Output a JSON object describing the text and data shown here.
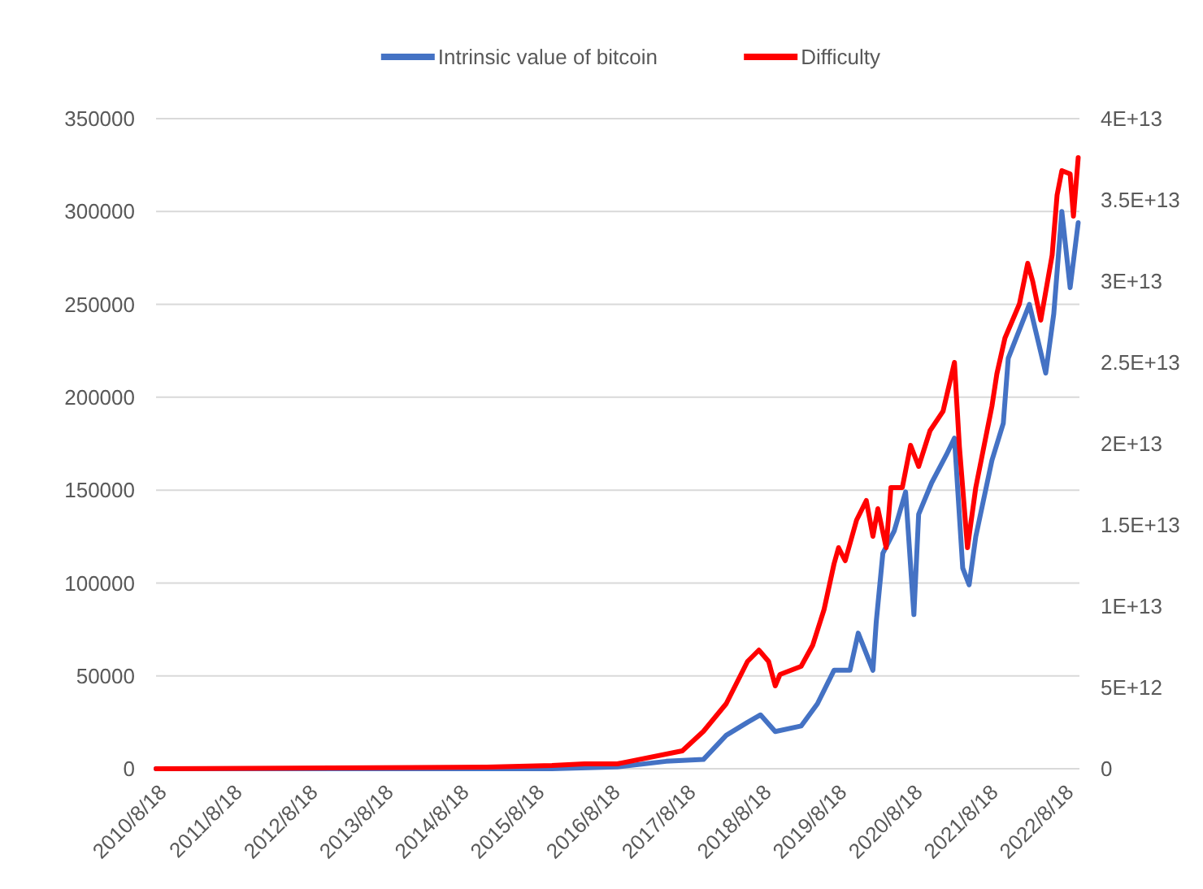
{
  "chart_data": {
    "type": "line",
    "legend": "top",
    "grid": "y",
    "xlim": [
      "2010-08-18",
      "2022-11-05"
    ],
    "xticks": [
      {
        "value": "2010-08-18",
        "label": "2010/8/18"
      },
      {
        "value": "2011-08-18",
        "label": "2011/8/18"
      },
      {
        "value": "2012-08-18",
        "label": "2012/8/18"
      },
      {
        "value": "2013-08-18",
        "label": "2013/8/18"
      },
      {
        "value": "2014-08-18",
        "label": "2014/8/18"
      },
      {
        "value": "2015-08-18",
        "label": "2015/8/18"
      },
      {
        "value": "2016-08-18",
        "label": "2016/8/18"
      },
      {
        "value": "2017-08-18",
        "label": "2017/8/18"
      },
      {
        "value": "2018-08-18",
        "label": "2018/8/18"
      },
      {
        "value": "2019-08-18",
        "label": "2019/8/18"
      },
      {
        "value": "2020-08-18",
        "label": "2020/8/18"
      },
      {
        "value": "2021-08-18",
        "label": "2021/8/18"
      },
      {
        "value": "2022-08-18",
        "label": "2022/8/18"
      }
    ],
    "ylim": [
      0,
      350000
    ],
    "yticks": [
      0,
      50000,
      100000,
      150000,
      200000,
      250000,
      300000,
      350000
    ],
    "y2lim": [
      0,
      40000000000000
    ],
    "y2ticks": [
      0,
      {
        "value": 5000000000000,
        "label": "5E+12"
      },
      {
        "value": 10000000000000,
        "label": "1E+13"
      },
      {
        "value": 15000000000000,
        "label": "1.5E+13"
      },
      {
        "value": 20000000000000,
        "label": "2E+13"
      },
      {
        "value": 25000000000000,
        "label": "2.5E+13"
      },
      {
        "value": 30000000000000,
        "label": "3E+13"
      },
      {
        "value": 35000000000000,
        "label": "3.5E+13"
      },
      {
        "value": 40000000000000,
        "label": "4E+13"
      }
    ],
    "series": [
      {
        "name": "Intrinsic value of bitcoin",
        "color": "#4472c4",
        "x": [
          "2010-08-18",
          "2015-11-13",
          "2016-09-24",
          "2017-05-18",
          "2017-11-14",
          "2018-03-04",
          "2018-06-15",
          "2018-08-17",
          "2018-10-27",
          "2019-03-01",
          "2019-05-19",
          "2019-08-07",
          "2019-10-23",
          "2019-12-02",
          "2020-02-11",
          "2020-02-27",
          "2020-03-30",
          "2020-05-24",
          "2020-07-18",
          "2020-08-27",
          "2020-09-19",
          "2020-11-21",
          "2021-01-31",
          "2021-03-11",
          "2021-04-20",
          "2021-05-21",
          "2021-06-22",
          "2021-09-08",
          "2021-11-02",
          "2021-11-26",
          "2022-03-08",
          "2022-05-26",
          "2022-07-04",
          "2022-08-12",
          "2022-09-21",
          "2022-10-30"
        ],
        "values": [
          0,
          0,
          1000,
          4000,
          5000,
          18000,
          25000,
          29000,
          20000,
          23000,
          35000,
          53000,
          53000,
          73000,
          53000,
          79000,
          116000,
          128000,
          149000,
          83000,
          137000,
          154000,
          169000,
          178000,
          108000,
          99000,
          125000,
          166000,
          186000,
          221000,
          250000,
          213000,
          245000,
          300000,
          259000,
          294000
        ]
      },
      {
        "name": "Difficulty",
        "color": "#ff0000",
        "axis": "y2",
        "x": [
          "2010-08-18",
          "2015-01-02",
          "2015-11-13",
          "2016-04-18",
          "2016-09-24",
          "2017-08-04",
          "2017-11-14",
          "2018-03-04",
          "2018-06-15",
          "2018-08-09",
          "2018-09-25",
          "2018-10-27",
          "2018-11-19",
          "2019-03-01",
          "2019-04-26",
          "2019-06-20",
          "2019-08-07",
          "2019-08-29",
          "2019-09-30",
          "2019-11-24",
          "2020-01-10",
          "2020-02-11",
          "2020-03-06",
          "2020-04-15",
          "2020-05-08",
          "2020-07-02",
          "2020-08-11",
          "2020-09-19",
          "2020-11-13",
          "2021-01-15",
          "2021-03-11",
          "2021-04-04",
          "2021-05-13",
          "2021-06-22",
          "2021-09-08",
          "2021-10-02",
          "2021-11-10",
          "2022-01-19",
          "2022-02-28",
          "2022-03-24",
          "2022-05-02",
          "2022-06-26",
          "2022-07-20",
          "2022-08-12",
          "2022-09-21",
          "2022-10-07",
          "2022-10-30"
        ],
        "values": [
          0,
          100000000000,
          200000000000,
          300000000000,
          300000000000,
          1100000000000,
          2300000000000,
          4000000000000,
          6600000000000,
          7300000000000,
          6600000000000,
          5100000000000,
          5800000000000,
          6300000000000,
          7600000000000,
          9800000000000,
          12600000000000,
          13600000000000,
          12800000000000,
          15300000000000,
          16500000000000,
          14300000000000,
          16000000000000,
          13600000000000,
          17300000000000,
          17300000000000,
          19900000000000,
          18600000000000,
          20800000000000,
          22000000000000,
          25000000000000,
          19800000000000,
          13600000000000,
          17300000000000,
          22300000000000,
          24300000000000,
          26500000000000,
          28600000000000,
          31100000000000,
          30000000000000,
          27600000000000,
          31600000000000,
          35300000000000,
          36800000000000,
          36600000000000,
          34000000000000,
          37600000000000
        ]
      }
    ]
  }
}
